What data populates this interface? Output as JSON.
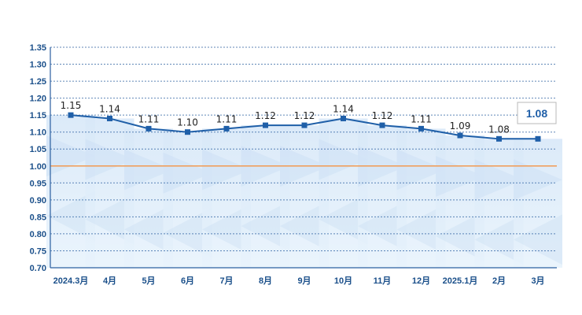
{
  "chart_data": {
    "type": "line",
    "categories": [
      "2024.3月",
      "4月",
      "5月",
      "6月",
      "7月",
      "8月",
      "9月",
      "10月",
      "11月",
      "12月",
      "2025.1月",
      "2月",
      "3月"
    ],
    "values": [
      1.15,
      1.14,
      1.11,
      1.1,
      1.11,
      1.12,
      1.12,
      1.14,
      1.12,
      1.11,
      1.09,
      1.08,
      1.08
    ],
    "value_labels": [
      "1.15",
      "1.14",
      "1.11",
      "1.10",
      "1.11",
      "1.12",
      "1.12",
      "1.14",
      "1.12",
      "1.11",
      "1.09",
      "1.08",
      ""
    ],
    "latest_value_label": "1.08",
    "yticks": [
      "0.70",
      "0.75",
      "0.80",
      "0.85",
      "0.90",
      "0.95",
      "1.00",
      "1.05",
      "1.10",
      "1.15",
      "1.20",
      "1.25",
      "1.30",
      "1.35"
    ],
    "ylim": [
      0.7,
      1.35
    ],
    "reference_line": 1.0,
    "grid": "horizontal dotted",
    "colors": {
      "line": "#1f5fa8",
      "marker": "#1f5fa8",
      "grid": "#2b5fa0",
      "reference_line": "#f29a52",
      "axis_text": "#1a4f8a",
      "bars": "#d6e8f8",
      "badge_border": "#b8b8b8"
    }
  }
}
